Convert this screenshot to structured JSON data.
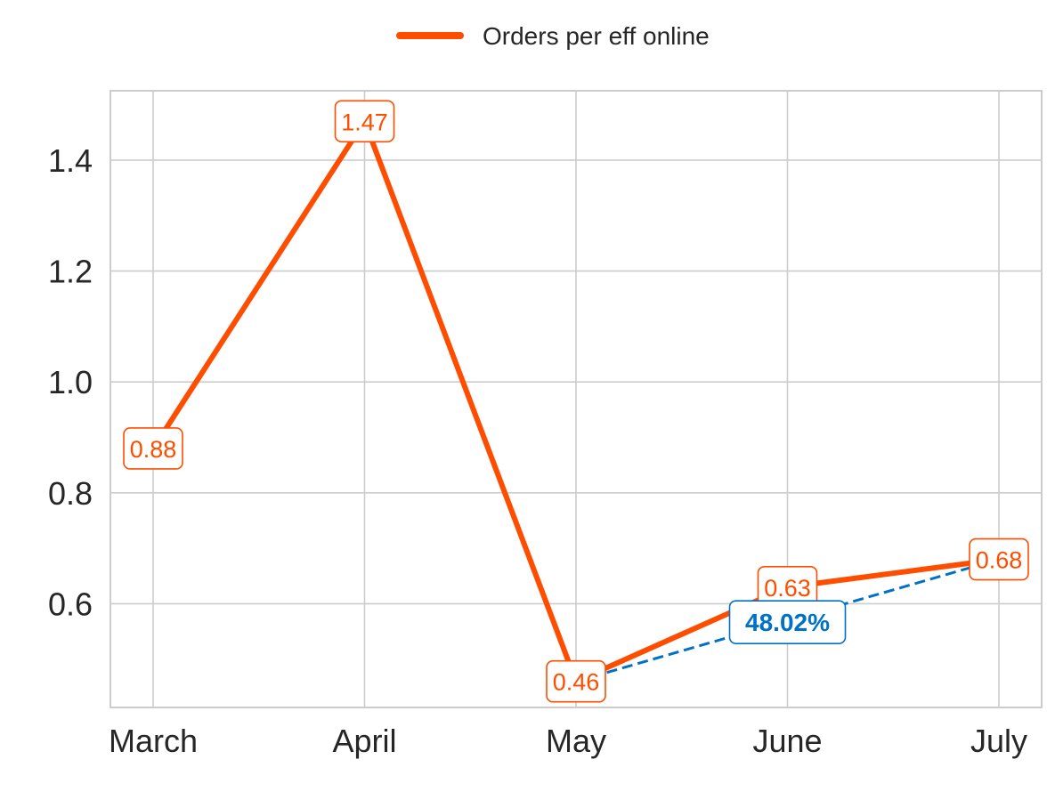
{
  "chart_data": {
    "type": "line",
    "categories": [
      "March",
      "April",
      "May",
      "June",
      "July"
    ],
    "series": [
      {
        "name": "Orders per eff online",
        "values": [
          0.88,
          1.47,
          0.46,
          0.63,
          0.68
        ],
        "labels": [
          "0.88",
          "1.47",
          "0.46",
          "0.63",
          "0.68"
        ],
        "color": "#ff4d00"
      }
    ],
    "annotation": {
      "label": "48.02%",
      "from_category": "May",
      "to_category": "July",
      "color": "#0072c6",
      "style": "dashed"
    },
    "ylim": [
      0.413,
      1.525
    ],
    "yticks": [
      0.6,
      0.8,
      1.0,
      1.2,
      1.4
    ],
    "ytick_labels": [
      "0.6",
      "0.8",
      "1.0",
      "1.2",
      "1.4"
    ],
    "grid": true,
    "legend_position": "top-center",
    "xlabel": "",
    "ylabel": "",
    "title": ""
  }
}
